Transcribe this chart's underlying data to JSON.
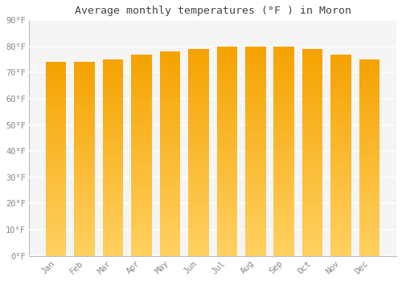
{
  "title": "Average monthly temperatures (°F ) in Moron",
  "months": [
    "Jan",
    "Feb",
    "Mar",
    "Apr",
    "May",
    "Jun",
    "Jul",
    "Aug",
    "Sep",
    "Oct",
    "Nov",
    "Dec"
  ],
  "values": [
    74,
    74,
    75,
    77,
    78,
    79,
    80,
    80,
    80,
    79,
    77,
    75
  ],
  "bar_color_top": "#F5A200",
  "bar_color_bottom": "#FFD060",
  "background_color": "#FFFFFF",
  "plot_bg_color": "#F5F5F5",
  "grid_color": "#FFFFFF",
  "tick_label_color": "#888888",
  "title_color": "#444444",
  "ylim": [
    0,
    90
  ],
  "ytick_step": 10,
  "bar_width": 0.72,
  "n_grad": 80
}
